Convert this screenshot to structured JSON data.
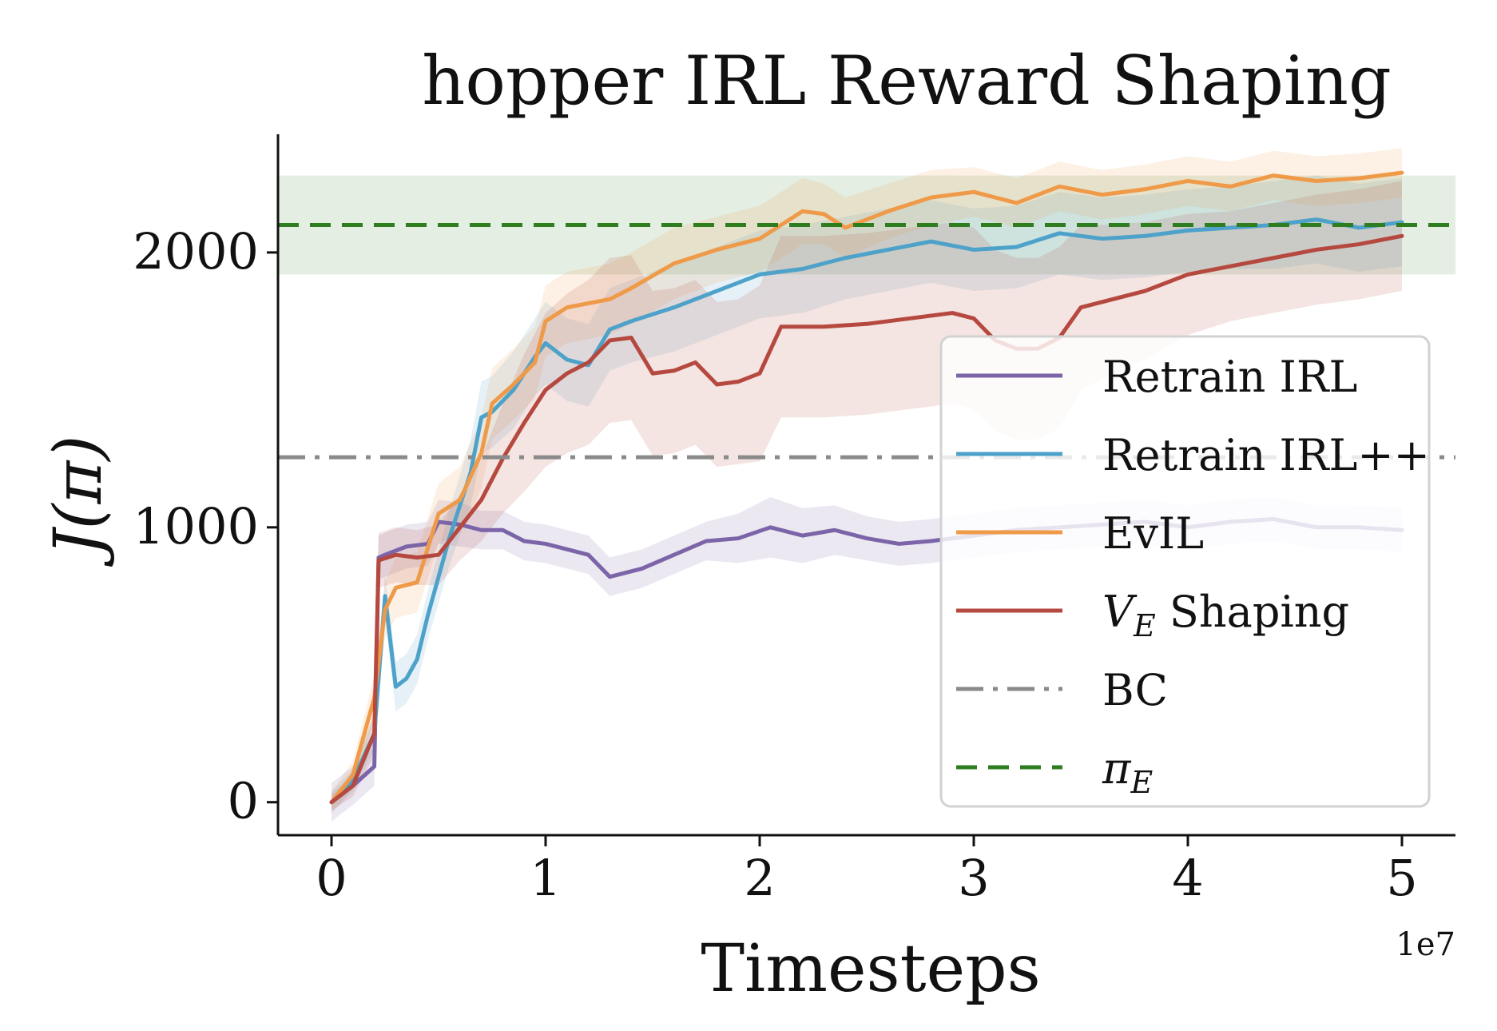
{
  "chart_data": {
    "type": "line",
    "title": "hopper IRL Reward Shaping",
    "xlabel": "Timesteps",
    "ylabel": "J(π)",
    "x_multiplier_label": "1e7",
    "xlim": [
      -0.25,
      5.25
    ],
    "ylim": [
      -120,
      2430
    ],
    "xticks": [
      0,
      1,
      2,
      3,
      4,
      5
    ],
    "xtick_labels": [
      "0",
      "1",
      "2",
      "3",
      "4",
      "5"
    ],
    "yticks": [
      0,
      1000,
      2000
    ],
    "ytick_labels": [
      "0",
      "1000",
      "2000"
    ],
    "grid": false,
    "legend_position": "center-right",
    "expert_band": {
      "low": 1920,
      "high": 2280,
      "color": "#2e7d1f"
    },
    "series": [
      {
        "name": "Retrain IRL",
        "color": "#7b64a8",
        "style": "solid",
        "x": [
          0,
          0.1,
          0.2,
          0.22,
          0.25,
          0.35,
          0.45,
          0.5,
          0.6,
          0.7,
          0.8,
          0.9,
          1.0,
          1.1,
          1.2,
          1.3,
          1.45,
          1.6,
          1.75,
          1.9,
          2.05,
          2.2,
          2.35,
          2.5,
          2.65,
          2.8,
          3.0,
          3.2,
          3.4,
          3.6,
          3.8,
          4.0,
          4.2,
          4.4,
          4.6,
          4.8,
          5.0
        ],
        "y": [
          0,
          60,
          130,
          890,
          900,
          930,
          940,
          1020,
          1010,
          990,
          990,
          950,
          940,
          920,
          900,
          820,
          850,
          900,
          950,
          960,
          1000,
          970,
          990,
          960,
          940,
          950,
          970,
          990,
          1000,
          1010,
          1020,
          1000,
          1020,
          1030,
          1000,
          1000,
          990
        ],
        "band": [
          70,
          70,
          70,
          80,
          80,
          80,
          80,
          80,
          80,
          70,
          70,
          70,
          70,
          70,
          70,
          70,
          70,
          70,
          70,
          90,
          110,
          100,
          90,
          80,
          80,
          80,
          80,
          80,
          80,
          80,
          80,
          80,
          80,
          80,
          80,
          80,
          80
        ]
      },
      {
        "name": "Retrain IRL++",
        "color": "#4ea2c9",
        "style": "solid",
        "x": [
          0,
          0.1,
          0.2,
          0.25,
          0.3,
          0.35,
          0.4,
          0.45,
          0.55,
          0.65,
          0.7,
          0.75,
          0.85,
          0.95,
          1.0,
          1.1,
          1.2,
          1.3,
          1.4,
          1.6,
          1.8,
          2.0,
          2.2,
          2.4,
          2.6,
          2.8,
          3.0,
          3.2,
          3.4,
          3.6,
          3.8,
          4.0,
          4.2,
          4.4,
          4.6,
          4.8,
          5.0
        ],
        "y": [
          0,
          80,
          250,
          750,
          420,
          450,
          520,
          680,
          960,
          1200,
          1400,
          1420,
          1500,
          1620,
          1670,
          1610,
          1590,
          1720,
          1750,
          1800,
          1860,
          1920,
          1940,
          1980,
          2010,
          2040,
          2010,
          2020,
          2070,
          2050,
          2060,
          2080,
          2090,
          2100,
          2120,
          2090,
          2110
        ],
        "band": [
          40,
          40,
          60,
          80,
          90,
          90,
          90,
          90,
          100,
          120,
          130,
          130,
          140,
          140,
          150,
          150,
          150,
          150,
          150,
          160,
          160,
          160,
          160,
          150,
          150,
          150,
          150,
          150,
          150,
          150,
          150,
          150,
          150,
          160,
          160,
          160,
          160
        ]
      },
      {
        "name": "EvIL",
        "color": "#ef9a48",
        "style": "solid",
        "x": [
          0,
          0.1,
          0.2,
          0.25,
          0.3,
          0.4,
          0.5,
          0.6,
          0.7,
          0.75,
          0.85,
          0.95,
          1.0,
          1.1,
          1.3,
          1.4,
          1.6,
          1.8,
          2.0,
          2.2,
          2.3,
          2.4,
          2.6,
          2.8,
          3.0,
          3.2,
          3.4,
          3.6,
          3.8,
          4.0,
          4.2,
          4.4,
          4.6,
          4.8,
          5.0
        ],
        "y": [
          0,
          100,
          380,
          700,
          780,
          800,
          1050,
          1100,
          1270,
          1450,
          1520,
          1600,
          1750,
          1800,
          1830,
          1870,
          1960,
          2010,
          2050,
          2150,
          2140,
          2090,
          2150,
          2200,
          2220,
          2180,
          2240,
          2210,
          2230,
          2260,
          2240,
          2280,
          2260,
          2270,
          2290
        ],
        "band": [
          40,
          50,
          80,
          100,
          110,
          110,
          110,
          120,
          130,
          130,
          130,
          130,
          130,
          130,
          130,
          130,
          130,
          120,
          120,
          120,
          110,
          110,
          100,
          100,
          90,
          90,
          90,
          90,
          90,
          90,
          90,
          90,
          90,
          90,
          90
        ]
      },
      {
        "name": "V_E Shaping",
        "color": "#b5493f",
        "style": "solid",
        "x": [
          0,
          0.1,
          0.2,
          0.22,
          0.3,
          0.4,
          0.5,
          0.6,
          0.7,
          0.8,
          0.9,
          1.0,
          1.1,
          1.2,
          1.3,
          1.4,
          1.5,
          1.6,
          1.7,
          1.8,
          1.9,
          2.0,
          2.1,
          2.3,
          2.5,
          2.7,
          2.9,
          3.0,
          3.1,
          3.2,
          3.3,
          3.4,
          3.5,
          3.6,
          3.8,
          4.0,
          4.2,
          4.4,
          4.6,
          4.8,
          5.0
        ],
        "y": [
          0,
          60,
          250,
          880,
          900,
          890,
          900,
          1000,
          1100,
          1250,
          1380,
          1500,
          1560,
          1600,
          1680,
          1690,
          1560,
          1570,
          1600,
          1520,
          1530,
          1560,
          1730,
          1730,
          1740,
          1760,
          1780,
          1760,
          1680,
          1650,
          1650,
          1690,
          1800,
          1820,
          1860,
          1920,
          1950,
          1980,
          2010,
          2030,
          2060
        ],
        "band": [
          30,
          40,
          80,
          100,
          100,
          100,
          110,
          120,
          150,
          200,
          250,
          280,
          290,
          300,
          300,
          300,
          300,
          300,
          300,
          300,
          300,
          320,
          330,
          330,
          330,
          330,
          330,
          330,
          330,
          330,
          330,
          330,
          300,
          280,
          250,
          220,
          200,
          200,
          200,
          200,
          200
        ]
      },
      {
        "name": "BC",
        "color": "#8a8a8a",
        "style": "dashdot",
        "value": 1255
      },
      {
        "name": "π_E",
        "color": "#2e7d1f",
        "style": "dashed",
        "value": 2100
      }
    ]
  },
  "legend": {
    "entries": [
      {
        "main": "Retrain IRL",
        "sub": ""
      },
      {
        "main": "Retrain IRL++",
        "sub": ""
      },
      {
        "main": "EvIL",
        "sub": ""
      },
      {
        "main": "V",
        "sub": "E",
        "suffix": " Shaping"
      },
      {
        "main": "BC",
        "sub": ""
      },
      {
        "main": "π",
        "sub": "E"
      }
    ]
  }
}
